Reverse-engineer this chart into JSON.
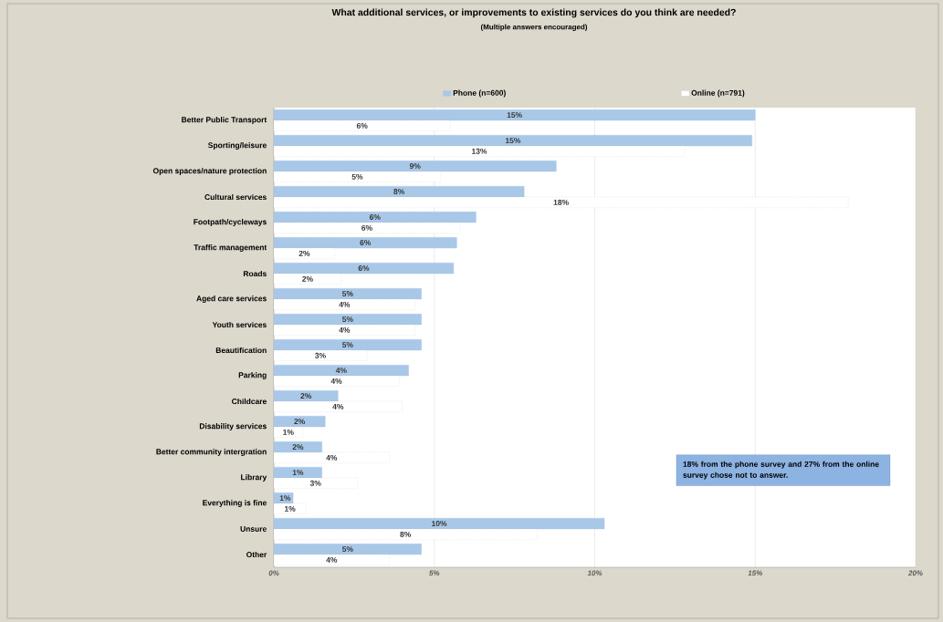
{
  "chart_data": {
    "type": "bar",
    "orientation": "horizontal",
    "title": "What additional services, or improvements to existing services do you think are needed?",
    "subtitle": "(Multiple answers encouraged)",
    "categories": [
      "Better Public Transport",
      "Sporting/leisure",
      "Open spaces/nature protection",
      "Cultural services",
      "Footpath/cycleways",
      "Traffic management",
      "Roads",
      "Aged care services",
      "Youth services",
      "Beautification",
      "Parking",
      "Childcare",
      "Disability services",
      "Better community intergration",
      "Library",
      "Everything is fine",
      "Unsure",
      "Other"
    ],
    "series": [
      {
        "name": "Phone (n=600)",
        "color": "#a9c8e8",
        "values": [
          15.0,
          14.9,
          8.8,
          7.8,
          6.3,
          5.7,
          5.6,
          4.6,
          4.6,
          4.6,
          4.2,
          2.0,
          1.6,
          1.5,
          1.5,
          0.6,
          10.3,
          4.6
        ],
        "value_labels": [
          "15%",
          "15%",
          "9%",
          "8%",
          "6%",
          "6%",
          "6%",
          "5%",
          "5%",
          "5%",
          "4%",
          "2%",
          "2%",
          "2%",
          "1%",
          "1%",
          "10%",
          "5%"
        ]
      },
      {
        "name": "Online (n=791)",
        "color": "#ffffff",
        "values": [
          5.5,
          12.8,
          5.2,
          17.9,
          5.8,
          1.9,
          2.1,
          4.4,
          4.4,
          2.9,
          3.9,
          4.0,
          0.9,
          3.6,
          2.6,
          1.0,
          8.2,
          3.6
        ],
        "value_labels": [
          "6%",
          "13%",
          "5%",
          "18%",
          "6%",
          "2%",
          "2%",
          "4%",
          "4%",
          "3%",
          "4%",
          "4%",
          "1%",
          "4%",
          "3%",
          "1%",
          "8%",
          "4%"
        ]
      }
    ],
    "xlim": [
      0,
      20
    ],
    "xticks": [
      {
        "value": 0,
        "label": "0%"
      },
      {
        "value": 5,
        "label": "5%"
      },
      {
        "value": 10,
        "label": "10%"
      },
      {
        "value": 15,
        "label": "15%"
      },
      {
        "value": 20,
        "label": "20%"
      }
    ],
    "grid": "x",
    "legend": "top",
    "annotations": [
      "18% from the phone survey  and 27% from the online survey chose not to answer."
    ]
  }
}
